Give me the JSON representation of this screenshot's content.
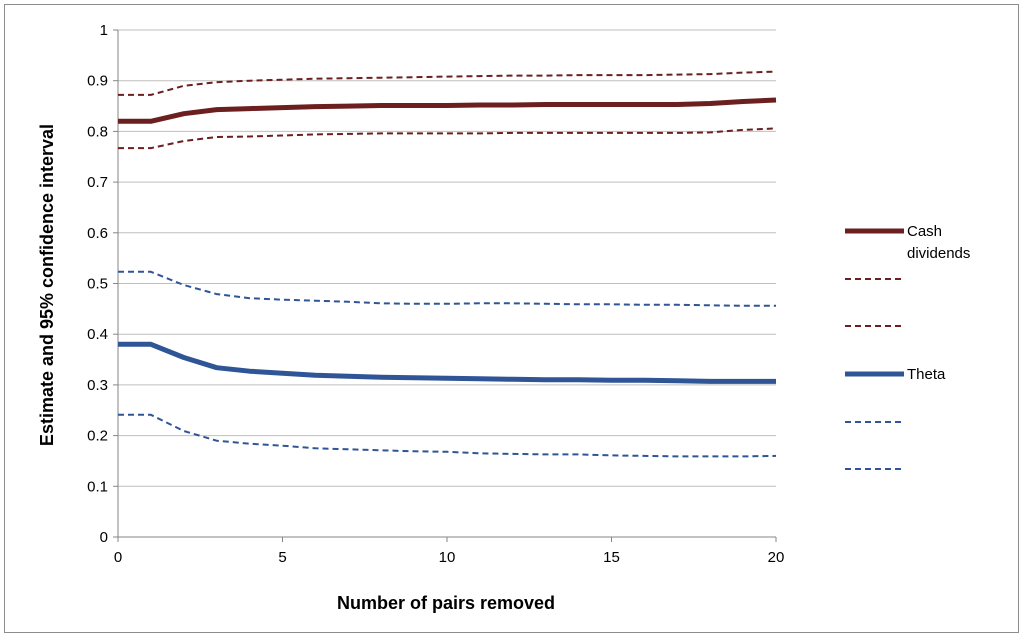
{
  "chart_data": {
    "type": "line",
    "title": "",
    "xlabel": "Number of pairs removed",
    "ylabel": "Estimate and 95% confidence interval",
    "xlim": [
      0,
      20
    ],
    "ylim": [
      0,
      1
    ],
    "x_ticks": [
      "0",
      "5",
      "10",
      "15",
      "20"
    ],
    "y_ticks": [
      "0",
      "0.1",
      "0.2",
      "0.3",
      "0.4",
      "0.5",
      "0.6",
      "0.7",
      "0.8",
      "0.9",
      "1"
    ],
    "grid": "horizontal",
    "legend_position": "right",
    "x": [
      0,
      1,
      2,
      3,
      4,
      5,
      6,
      7,
      8,
      9,
      10,
      11,
      12,
      13,
      14,
      15,
      16,
      17,
      18,
      19,
      20
    ],
    "series": [
      {
        "name": "Cash dividends",
        "color": "#6b1f1f",
        "style": "solid",
        "values": [
          0.82,
          0.82,
          0.835,
          0.843,
          0.845,
          0.847,
          0.849,
          0.85,
          0.851,
          0.851,
          0.851,
          0.852,
          0.852,
          0.853,
          0.853,
          0.853,
          0.853,
          0.853,
          0.855,
          0.859,
          0.862
        ]
      },
      {
        "name": "",
        "color": "#6b1f1f",
        "style": "dashed",
        "values": [
          0.872,
          0.872,
          0.89,
          0.897,
          0.9,
          0.902,
          0.904,
          0.905,
          0.906,
          0.907,
          0.908,
          0.909,
          0.91,
          0.91,
          0.911,
          0.911,
          0.911,
          0.912,
          0.913,
          0.916,
          0.918
        ]
      },
      {
        "name": "",
        "color": "#6b1f1f",
        "style": "dashed",
        "values": [
          0.767,
          0.767,
          0.781,
          0.789,
          0.79,
          0.792,
          0.794,
          0.795,
          0.796,
          0.796,
          0.796,
          0.796,
          0.797,
          0.797,
          0.797,
          0.797,
          0.797,
          0.797,
          0.798,
          0.803,
          0.806
        ]
      },
      {
        "name": "Theta",
        "color": "#2f5597",
        "style": "solid",
        "values": [
          0.38,
          0.38,
          0.354,
          0.334,
          0.327,
          0.323,
          0.319,
          0.317,
          0.315,
          0.314,
          0.313,
          0.312,
          0.311,
          0.31,
          0.31,
          0.309,
          0.309,
          0.308,
          0.307,
          0.307,
          0.307
        ]
      },
      {
        "name": "",
        "color": "#2f5597",
        "style": "dashed",
        "values": [
          0.523,
          0.523,
          0.497,
          0.479,
          0.471,
          0.468,
          0.466,
          0.464,
          0.461,
          0.46,
          0.46,
          0.461,
          0.461,
          0.46,
          0.459,
          0.459,
          0.458,
          0.458,
          0.457,
          0.456,
          0.456
        ]
      },
      {
        "name": "",
        "color": "#2f5597",
        "style": "dashed",
        "values": [
          0.241,
          0.241,
          0.209,
          0.19,
          0.184,
          0.18,
          0.175,
          0.173,
          0.171,
          0.169,
          0.168,
          0.165,
          0.164,
          0.163,
          0.163,
          0.161,
          0.16,
          0.159,
          0.159,
          0.159,
          0.16
        ]
      }
    ]
  }
}
